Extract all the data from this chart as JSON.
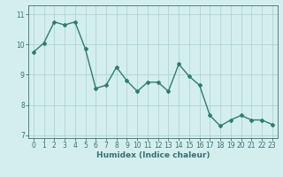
{
  "x": [
    0,
    1,
    2,
    3,
    4,
    5,
    6,
    7,
    8,
    9,
    10,
    11,
    12,
    13,
    14,
    15,
    16,
    17,
    18,
    19,
    20,
    21,
    22,
    23
  ],
  "y": [
    9.75,
    10.05,
    10.75,
    10.65,
    10.75,
    9.85,
    8.55,
    8.65,
    9.25,
    8.8,
    8.45,
    8.75,
    8.75,
    8.45,
    9.35,
    8.95,
    8.65,
    7.65,
    7.3,
    7.5,
    7.65,
    7.5,
    7.5,
    7.35
  ],
  "line_color": "#2e7d6e",
  "marker": "D",
  "marker_size": 2,
  "line_width": 1.0,
  "xlabel": "Humidex (Indice chaleur)",
  "xlabel_fontsize": 6.5,
  "xlim": [
    -0.5,
    23.5
  ],
  "ylim": [
    6.9,
    11.3
  ],
  "yticks": [
    7,
    8,
    9,
    10,
    11
  ],
  "xticks": [
    0,
    1,
    2,
    3,
    4,
    5,
    6,
    7,
    8,
    9,
    10,
    11,
    12,
    13,
    14,
    15,
    16,
    17,
    18,
    19,
    20,
    21,
    22,
    23
  ],
  "grid_color": "#aed4d4",
  "bg_color": "#d4eeee",
  "tick_fontsize": 5.5,
  "axes_color": "#3a7070"
}
